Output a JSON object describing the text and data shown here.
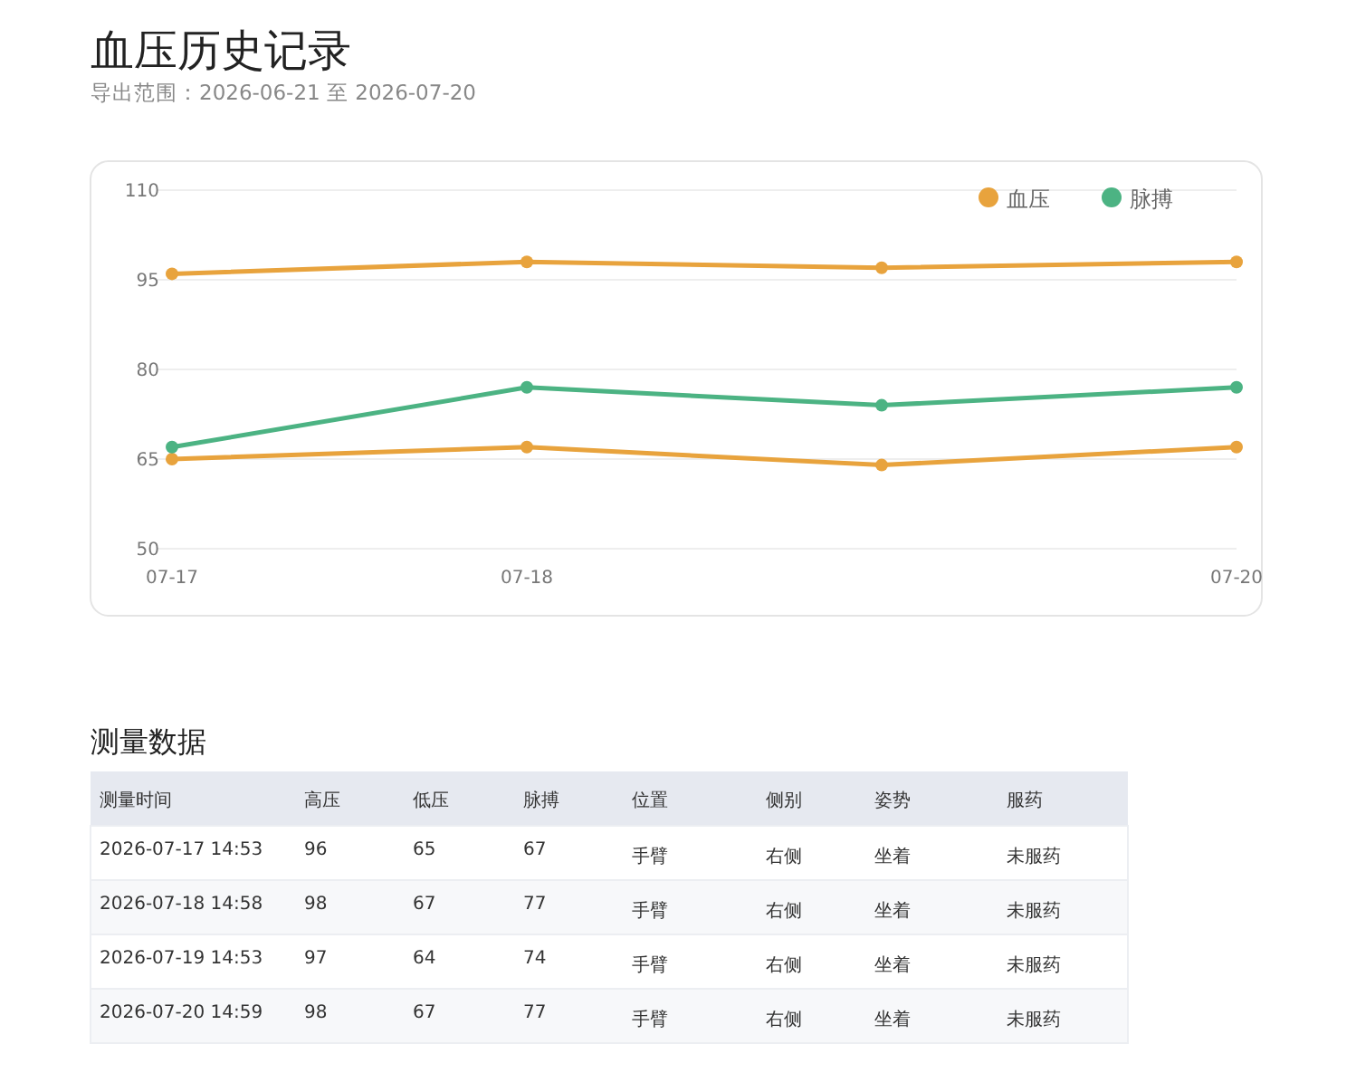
{
  "chart_data": {
    "type": "line",
    "title": "血压历史记录",
    "subtitle": "导出范围：2026-06-21 至 2026-07-20",
    "categories": [
      "07-17",
      "07-18",
      null,
      "07-20"
    ],
    "series": [
      {
        "name": "血压",
        "color": "#e8a33d",
        "values": [
          96,
          98,
          97,
          98
        ]
      },
      {
        "color": "#e8a33d",
        "values": [
          65,
          67,
          64,
          67
        ]
      },
      {
        "name": "脉搏",
        "color": "#4cb383",
        "values": [
          67,
          77,
          74,
          77
        ]
      }
    ],
    "ylim": [
      50,
      110
    ],
    "yticks": [
      50,
      65,
      80,
      95,
      110
    ],
    "grid": "y",
    "legend": "top right",
    "marker": "circle",
    "line_style": "solid",
    "annotations": [
      "测量数据",
      "测量时间",
      "高压",
      "低压",
      "脉搏",
      "位置",
      "侧别",
      "姿势",
      "服药",
      "2026-07-17 14:53",
      "96",
      "65",
      "67",
      "手臂",
      "右侧",
      "坐着",
      "未服药",
      "2026-07-18 14:58",
      "98",
      "67",
      "77",
      "手臂",
      "右侧",
      "坐着",
      "未服药",
      "2026-07-19 14:53",
      "97",
      "64",
      "74",
      "手臂",
      "右侧",
      "坐着",
      "未服药",
      "2026-07-20 14:59",
      "98",
      "67",
      "77",
      "手臂",
      "右侧",
      "坐着",
      "未服药"
    ]
  }
}
